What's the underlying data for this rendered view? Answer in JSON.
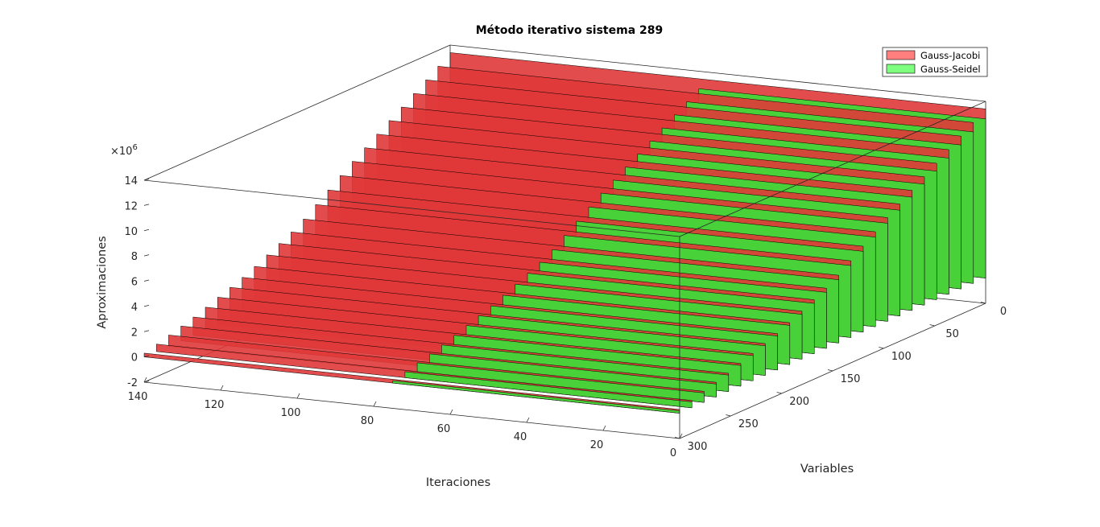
{
  "chart_data": {
    "type": "bar",
    "title": "Método iterativo sistema 289",
    "xlabel": "Iteraciones",
    "ylabel": "Variables",
    "zlabel": "Aproximaciones",
    "z_exponent_label": "×10^6",
    "xlim": [
      0,
      140
    ],
    "ylim": [
      0,
      300
    ],
    "zlim": [
      -2,
      14
    ],
    "x_ticks": [
      0,
      20,
      40,
      60,
      80,
      100,
      120,
      140
    ],
    "y_ticks": [
      0,
      50,
      100,
      150,
      200,
      250,
      300
    ],
    "z_ticks": [
      -2,
      0,
      2,
      4,
      6,
      8,
      10,
      12,
      14
    ],
    "grid": false,
    "legend_position": "top-right",
    "series": [
      {
        "name": "Gauss-Jacobi",
        "color": "#ff4040",
        "x_iterations": [
          0,
          140
        ],
        "variables": 289,
        "approx_envelope_1e6": [
          {
            "variable": 0,
            "value": 13.4
          },
          {
            "variable": 100,
            "value": 8.0
          },
          {
            "variable": 150,
            "value": 5.0
          },
          {
            "variable": 200,
            "value": 3.0
          },
          {
            "variable": 250,
            "value": 1.5
          },
          {
            "variable": 300,
            "value": 0.3
          }
        ]
      },
      {
        "name": "Gauss-Seidel",
        "color": "#40ff40",
        "x_iterations": [
          0,
          75
        ],
        "variables": 289,
        "approx_envelope_1e6": [
          {
            "variable": 0,
            "value": 13.0
          },
          {
            "variable": 100,
            "value": 7.8
          },
          {
            "variable": 150,
            "value": 4.8
          },
          {
            "variable": 200,
            "value": 2.9
          },
          {
            "variable": 250,
            "value": 1.4
          },
          {
            "variable": 300,
            "value": 0.2
          }
        ]
      }
    ]
  }
}
